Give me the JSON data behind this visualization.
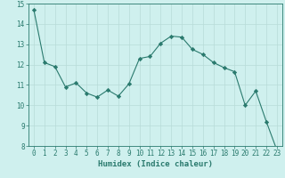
{
  "x": [
    0,
    1,
    2,
    3,
    4,
    5,
    6,
    7,
    8,
    9,
    10,
    11,
    12,
    13,
    14,
    15,
    16,
    17,
    18,
    19,
    20,
    21,
    22,
    23
  ],
  "y": [
    14.7,
    12.1,
    11.9,
    10.9,
    11.1,
    10.6,
    10.4,
    10.75,
    10.45,
    11.05,
    12.3,
    12.4,
    13.05,
    13.4,
    13.35,
    12.75,
    12.5,
    12.1,
    11.85,
    11.65,
    10.0,
    10.7,
    9.2,
    7.8
  ],
  "line_color": "#2a7a6e",
  "marker": "D",
  "marker_size": 2.2,
  "bg_color": "#cff0ee",
  "grid_color": "#b8dbd8",
  "xlabel": "Humidex (Indice chaleur)",
  "xlim_min": -0.5,
  "xlim_max": 23.5,
  "ylim": [
    8,
    15
  ],
  "yticks": [
    8,
    9,
    10,
    11,
    12,
    13,
    14,
    15
  ],
  "xticks": [
    0,
    1,
    2,
    3,
    4,
    5,
    6,
    7,
    8,
    9,
    10,
    11,
    12,
    13,
    14,
    15,
    16,
    17,
    18,
    19,
    20,
    21,
    22,
    23
  ],
  "tick_color": "#2a7a6e",
  "label_color": "#2a7a6e",
  "tick_fontsize": 5.5,
  "xlabel_fontsize": 6.5
}
